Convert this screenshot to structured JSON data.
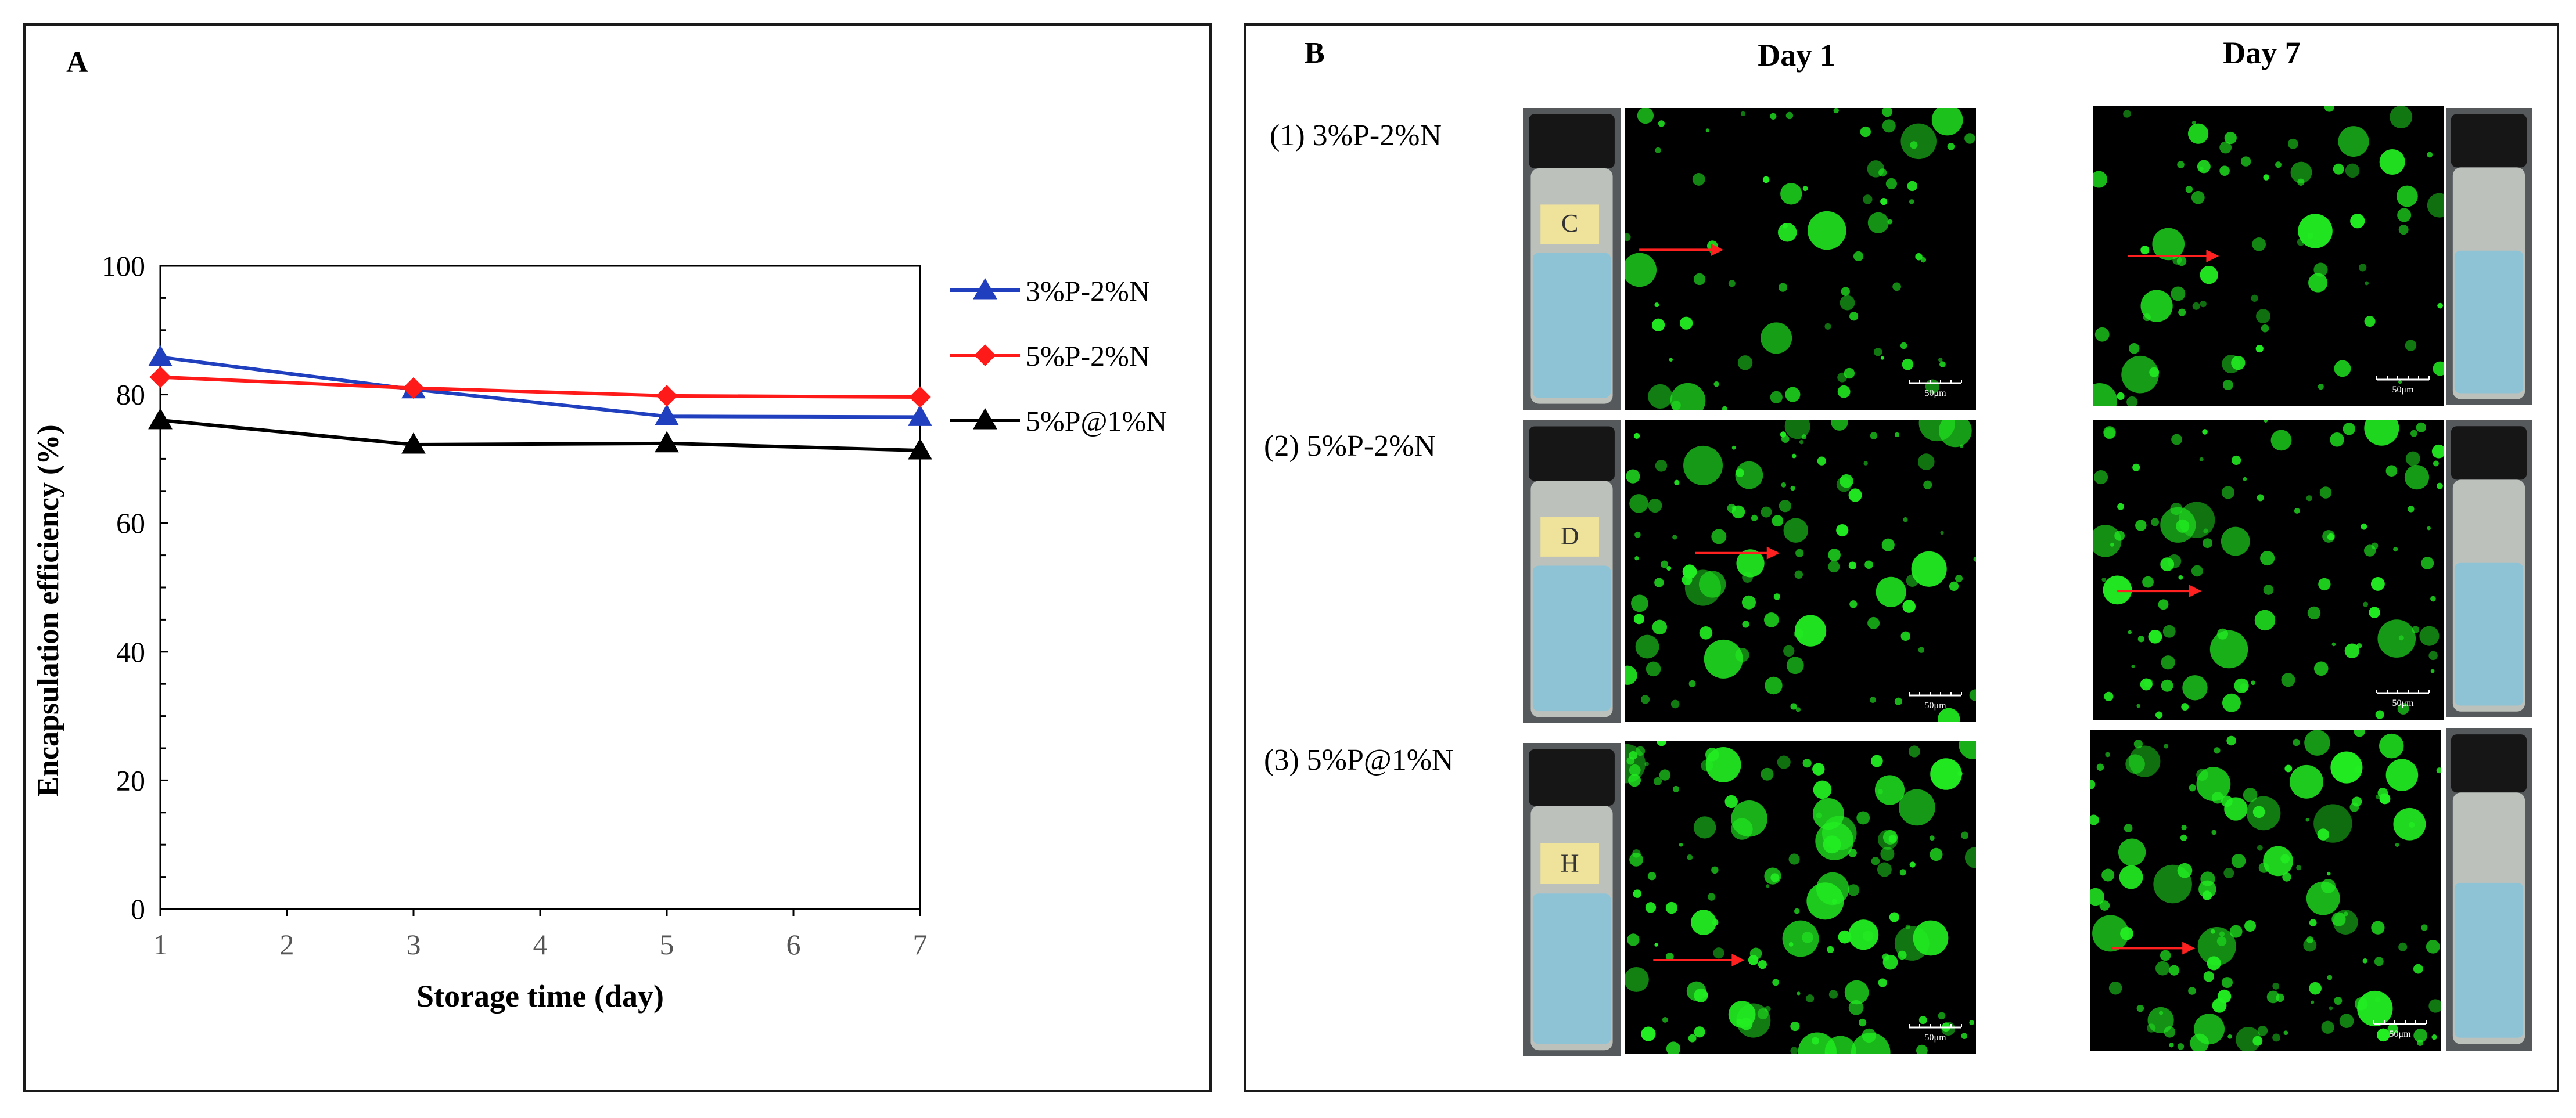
{
  "panels": {
    "a_label": "A",
    "b_label": "B"
  },
  "chart_data": {
    "type": "line",
    "title": "",
    "xlabel": "Storage time (day)",
    "ylabel": "Encapsulation efficiency (%)",
    "xlim": [
      1,
      7
    ],
    "ylim": [
      0,
      100
    ],
    "x_ticks": [
      "1",
      "2",
      "3",
      "4",
      "5",
      "6",
      "7"
    ],
    "y_ticks": [
      "0",
      "20",
      "40",
      "60",
      "80",
      "100"
    ],
    "grid": false,
    "legend_position": "right",
    "x": [
      1,
      3,
      5,
      7
    ],
    "series": [
      {
        "name": "3%P-2%N",
        "color": "#1f3fbf",
        "marker": "triangle",
        "values": [
          85.8,
          80.8,
          76.6,
          76.5
        ]
      },
      {
        "name": "5%P-2%N",
        "color": "#ff1a1a",
        "marker": "diamond",
        "values": [
          82.7,
          81.0,
          79.8,
          79.6
        ]
      },
      {
        "name": "5%P@1%N",
        "color": "#000000",
        "marker": "triangle",
        "values": [
          76.0,
          72.2,
          72.4,
          71.3
        ]
      }
    ]
  },
  "micrographs": {
    "col_day1": "Day 1",
    "col_day7": "Day 7",
    "rows": [
      {
        "label": "(1) 3%P-2%N",
        "vial_tag": "C"
      },
      {
        "label": "(2) 5%P-2%N",
        "vial_tag": "D"
      },
      {
        "label": "(3) 5%P@1%N",
        "vial_tag": "H"
      }
    ],
    "scale_label": "50μm",
    "colors": {
      "droplet": "#22ee22",
      "arrow": "#ff2020",
      "liquid": "#8ec3d6",
      "background": "#000000"
    }
  }
}
